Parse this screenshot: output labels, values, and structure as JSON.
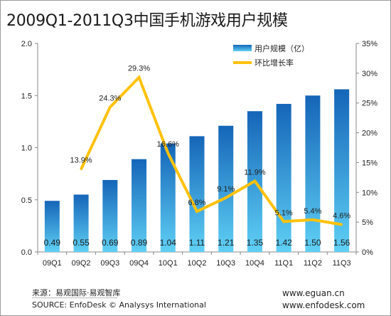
{
  "title": "2009Q1-2011Q3中国手机游戏用户规模",
  "chart_data": {
    "type": "bar",
    "title": "2009Q1-2011Q3中国手机游戏用户规模",
    "categories": [
      "09Q1",
      "09Q2",
      "09Q3",
      "09Q4",
      "10Q1",
      "10Q2",
      "10Q3",
      "10Q4",
      "11Q1",
      "11Q2",
      "11Q3"
    ],
    "series": [
      {
        "name": "用户规模（亿）",
        "type": "bar",
        "axis": "left",
        "values": [
          0.49,
          0.55,
          0.69,
          0.89,
          1.04,
          1.11,
          1.21,
          1.35,
          1.42,
          1.5,
          1.56
        ],
        "labels": [
          "0.49",
          "0.55",
          "0.69",
          "0.89",
          "1.04",
          "1.11",
          "1.21",
          "1.35",
          "1.42",
          "1.50",
          "1.56"
        ]
      },
      {
        "name": "环比增长率",
        "type": "line",
        "axis": "right",
        "values": [
          null,
          13.9,
          24.3,
          29.3,
          16.6,
          6.8,
          9.1,
          11.9,
          5.1,
          5.4,
          4.6
        ],
        "labels": [
          "",
          "13.9%",
          "24.3%",
          "29.3%",
          "16.6%",
          "6.8%",
          "9.1%",
          "11.9%",
          "5.1%",
          "5.4%",
          "4.6%"
        ]
      }
    ],
    "left_axis": {
      "ylim": [
        0,
        2.0
      ],
      "ticks": [
        "0.0",
        "0.5",
        "1.0",
        "1.5",
        "2.0"
      ]
    },
    "right_axis": {
      "ylim": [
        0,
        35
      ],
      "ticks": [
        "0%",
        "5%",
        "10%",
        "15%",
        "20%",
        "25%",
        "30%",
        "35%"
      ]
    },
    "legend": {
      "placement": "top-right",
      "items": [
        "用户规模（亿）",
        "环比增长率"
      ]
    },
    "grid": false,
    "colors": {
      "bar_top": "#1565b8",
      "bar_bottom": "#5fd0f5",
      "line": "#ffc20e",
      "axis": "#888888",
      "text": "#222222"
    }
  },
  "footer": {
    "source_cn": "来源：易观国际·易观智库",
    "source_en": "SOURCE: EnfoDesk © Analysys International",
    "site_1": "www.eguan.cn",
    "site_2": "www.enfodesk.com"
  }
}
